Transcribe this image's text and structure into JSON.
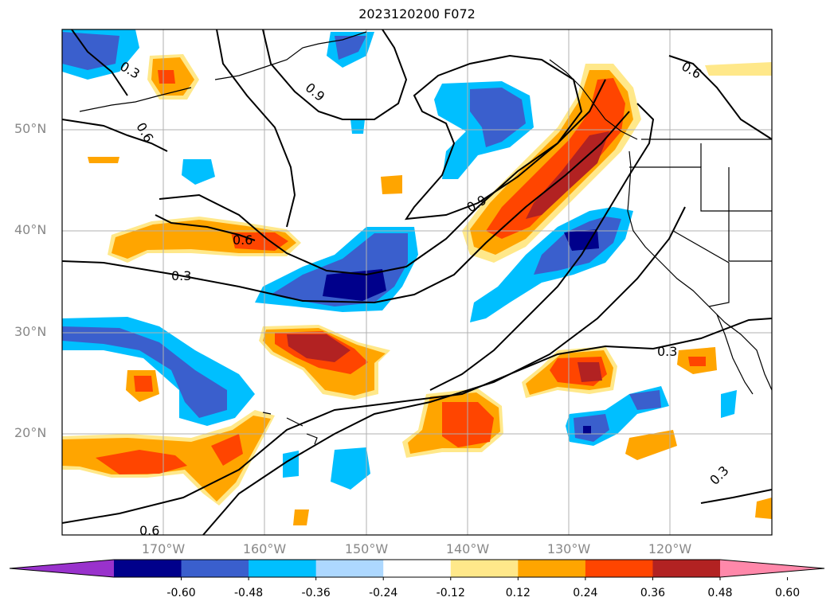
{
  "title": "2023120200 F072",
  "lat_labels": [
    "50°N",
    "40°N",
    "30°N",
    "20°N"
  ],
  "lon_labels": [
    "170°W",
    "160°W",
    "150°W",
    "140°W",
    "130°W",
    "120°W"
  ],
  "colorbar": {
    "ticks": [
      "-0.60",
      "-0.48",
      "-0.36",
      "-0.24",
      "-0.12",
      "0.12",
      "0.24",
      "0.36",
      "0.48",
      "0.60"
    ],
    "colors": [
      "#9932cc",
      "#00008b",
      "#3a5fcd",
      "#00bfff",
      "#add8ff",
      "#ffffff",
      "#ffe88a",
      "#ffa500",
      "#ff4500",
      "#b22222",
      "#ff88aa"
    ],
    "extend": "both"
  },
  "contour_labels": [
    "0.3",
    "0.6",
    "0.9",
    "0.6",
    "0.9",
    "0.6",
    "0.3",
    "0.3",
    "0.6",
    "0.3"
  ],
  "colors": {
    "contour": "#000000",
    "grid": "#b0b0b0",
    "coast": "#000000"
  }
}
